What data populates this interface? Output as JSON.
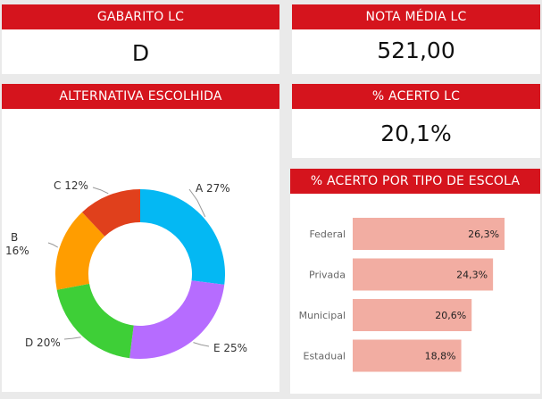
{
  "cards": {
    "gabarito": {
      "title": "GABARITO LC",
      "value": "D"
    },
    "nota": {
      "title": "NOTA MÉDIA LC",
      "value": "521,00"
    },
    "alternativa": {
      "title": "ALTERNATIVA ESCOLHIDA"
    },
    "acerto": {
      "title": "% ACERTO LC",
      "value": "20,1%"
    },
    "tipo_escola": {
      "title": "% ACERTO POR TIPO DE ESCOLA"
    }
  },
  "colors": {
    "header_red": "#d5141d",
    "bar_fill": "#f2ada2",
    "slice_a": "#04b8f3",
    "slice_b": "#ff9d00",
    "slice_c": "#e0401c",
    "slice_d": "#3ecf37",
    "slice_e": "#b66cff"
  },
  "chart_data": [
    {
      "type": "pie",
      "donut": true,
      "categories": [
        "A",
        "E",
        "D",
        "B",
        "C"
      ],
      "values": [
        27,
        25,
        20,
        16,
        12
      ],
      "labels": [
        "A 27%",
        "E 25%",
        "D 20%",
        "B 16%",
        "C 12%"
      ]
    },
    {
      "type": "bar",
      "orientation": "horizontal",
      "categories": [
        "Federal",
        "Privada",
        "Municipal",
        "Estadual"
      ],
      "values": [
        26.3,
        24.3,
        20.6,
        18.8
      ],
      "value_labels": [
        "26,3%",
        "24,3%",
        "20,6%",
        "18,8%"
      ],
      "xlim": [
        0,
        30
      ]
    }
  ]
}
